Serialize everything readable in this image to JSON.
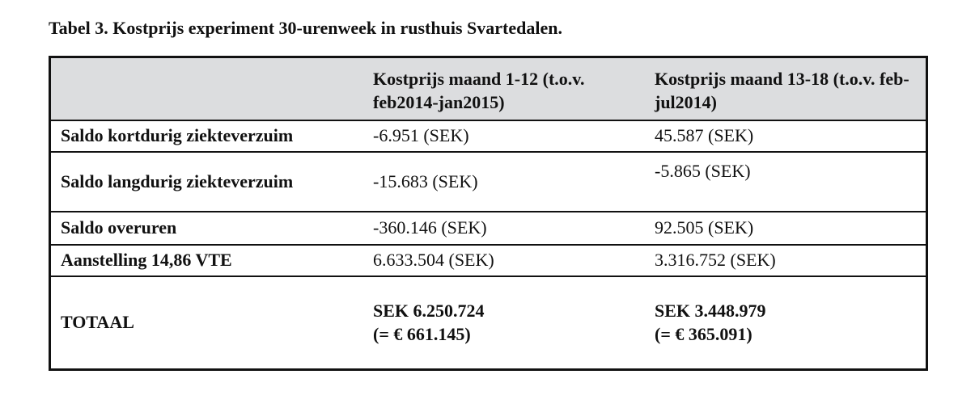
{
  "title": "Tabel 3. Kostprijs experiment 30-urenweek in rusthuis Svartedalen.",
  "table": {
    "headers": [
      "",
      "Kostprijs maand 1-12 (t.o.v. feb2014-jan2015)",
      "Kostprijs maand 13-18 (t.o.v. feb-jul2014)"
    ],
    "rows": [
      [
        "Saldo kortdurig ziekteverzuim",
        "-6.951 (SEK)",
        "45.587 (SEK)"
      ],
      [
        "Saldo langdurig ziekteverzuim",
        "-15.683 (SEK)",
        "-5.865 (SEK)"
      ],
      [
        "Saldo overuren",
        "-360.146 (SEK)",
        "92.505 (SEK)"
      ],
      [
        "Aanstelling 14,86 VTE",
        "6.633.504 (SEK)",
        "3.316.752 (SEK)"
      ]
    ],
    "total": {
      "label": "TOTAAL",
      "col1_sek": "SEK 6.250.724",
      "col1_eur": "(= € 661.145)",
      "col2_sek": "SEK 3.448.979",
      "col2_eur": "(= € 365.091)"
    }
  },
  "colors": {
    "header_bg": "#dcdddf",
    "border": "#111111"
  }
}
